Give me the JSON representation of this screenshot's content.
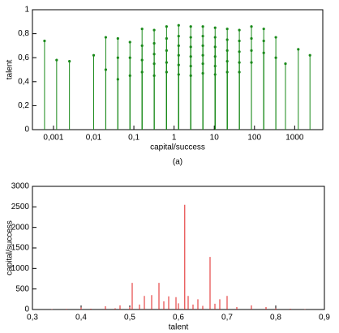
{
  "chart_data": [
    {
      "type": "stem",
      "x_label": "capital/success",
      "y_label": "talent",
      "annotation": "(a)",
      "xlog": true,
      "markers": true,
      "color": "#1a8a1a",
      "grid": false,
      "xlim": [
        0.0003,
        5000
      ],
      "ylim": [
        0,
        1
      ],
      "xticks": [
        {
          "value": 0.001,
          "label": "0,001"
        },
        {
          "value": 0.01,
          "label": "0,01"
        },
        {
          "value": 0.1,
          "label": "0,1"
        },
        1,
        10,
        100,
        1000
      ],
      "yticks": [
        0,
        {
          "value": 0.2,
          "label": "0,2"
        },
        {
          "value": 0.4,
          "label": "0,4"
        },
        {
          "value": 0.6,
          "label": "0,6"
        },
        {
          "value": 0.8,
          "label": "0,8"
        },
        1
      ],
      "x": [
        0.0006,
        0.0012,
        0.0025,
        0.01,
        0.02,
        0.02,
        0.04,
        0.04,
        0.04,
        0.08,
        0.08,
        0.08,
        0.16,
        0.16,
        0.16,
        0.16,
        0.32,
        0.32,
        0.32,
        0.32,
        0.32,
        0.65,
        0.65,
        0.65,
        0.65,
        0.65,
        1.3,
        1.3,
        1.3,
        1.3,
        1.3,
        1.3,
        2.6,
        2.6,
        2.6,
        2.6,
        2.6,
        2.6,
        5.2,
        5.2,
        5.2,
        5.2,
        5.2,
        5.2,
        10.5,
        10.5,
        10.5,
        10.5,
        10.5,
        10.5,
        21,
        21,
        21,
        21,
        21,
        42,
        42,
        42,
        42,
        42,
        84,
        84,
        84,
        84,
        170,
        170,
        170,
        340,
        340,
        590,
        1230,
        2400
      ],
      "values": [
        0.74,
        0.58,
        0.57,
        0.62,
        0.77,
        0.5,
        0.76,
        0.6,
        0.42,
        0.73,
        0.6,
        0.45,
        0.84,
        0.7,
        0.58,
        0.48,
        0.83,
        0.72,
        0.63,
        0.55,
        0.45,
        0.86,
        0.76,
        0.66,
        0.56,
        0.48,
        0.87,
        0.78,
        0.7,
        0.62,
        0.54,
        0.46,
        0.86,
        0.77,
        0.69,
        0.61,
        0.53,
        0.45,
        0.86,
        0.78,
        0.7,
        0.62,
        0.55,
        0.47,
        0.85,
        0.77,
        0.69,
        0.61,
        0.53,
        0.46,
        0.84,
        0.75,
        0.66,
        0.57,
        0.48,
        0.83,
        0.74,
        0.65,
        0.56,
        0.48,
        0.86,
        0.76,
        0.66,
        0.56,
        0.84,
        0.74,
        0.64,
        0.77,
        0.6,
        0.55,
        0.67,
        0.62
      ]
    },
    {
      "type": "stem",
      "x_label": "talent",
      "y_label": "capital/success",
      "xlog": false,
      "markers": false,
      "color": "#e02020",
      "grid": false,
      "xlim": [
        0.3,
        0.9
      ],
      "ylim": [
        0,
        3000
      ],
      "xticks": [
        {
          "value": 0.3,
          "label": "0,3"
        },
        {
          "value": 0.4,
          "label": "0,4"
        },
        {
          "value": 0.5,
          "label": "0,5"
        },
        {
          "value": 0.6,
          "label": "0,6"
        },
        {
          "value": 0.7,
          "label": "0,7"
        },
        {
          "value": 0.8,
          "label": "0,8"
        },
        {
          "value": 0.9,
          "label": "0,9"
        }
      ],
      "yticks": [
        0,
        500,
        1000,
        1500,
        2000,
        2500,
        3000
      ],
      "x": [
        0.34,
        0.37,
        0.4,
        0.42,
        0.45,
        0.47,
        0.48,
        0.5,
        0.505,
        0.52,
        0.53,
        0.545,
        0.56,
        0.57,
        0.58,
        0.595,
        0.6,
        0.613,
        0.62,
        0.63,
        0.64,
        0.65,
        0.665,
        0.675,
        0.685,
        0.7,
        0.72,
        0.75,
        0.78,
        0.8,
        0.83,
        0.86
      ],
      "values": [
        10,
        15,
        50,
        20,
        80,
        30,
        100,
        60,
        650,
        120,
        330,
        350,
        650,
        200,
        320,
        300,
        150,
        2550,
        330,
        120,
        250,
        90,
        1280,
        140,
        250,
        330,
        60,
        100,
        60,
        30,
        20,
        10
      ]
    }
  ]
}
